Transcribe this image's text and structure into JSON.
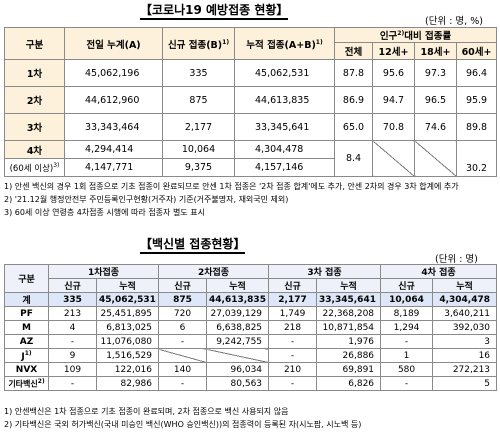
{
  "section1": {
    "title": "【코로나19 예방접종 현황】",
    "unit": "(단위 : 명, %)",
    "headers": {
      "gubun": "구분",
      "prev": "전일 누계(A)",
      "new": "신규 접종(B)",
      "new_sup": "1)",
      "cum": "누적 접종(A+B)",
      "cum_sup": "1)",
      "ratio": "인구",
      "ratio_sup": "2)",
      "ratio_tail": "대비 접종률",
      "sub": [
        "전체",
        "12세+",
        "18세+",
        "60세+"
      ]
    },
    "rows": [
      {
        "label": "1차",
        "prev": "45,062,196",
        "new": "335",
        "cum": "45,062,531",
        "r": [
          "87.8",
          "95.6",
          "97.3",
          "96.4"
        ]
      },
      {
        "label": "2차",
        "prev": "44,612,960",
        "new": "875",
        "cum": "44,613,835",
        "r": [
          "86.9",
          "94.7",
          "96.5",
          "95.9"
        ]
      },
      {
        "label": "3차",
        "prev": "33,343,464",
        "new": "2,177",
        "cum": "33,345,641",
        "r": [
          "65.0",
          "70.8",
          "74.6",
          "89.8"
        ]
      }
    ],
    "row4": {
      "label": "4차",
      "sub_label": "(60세 이상)",
      "sub_sup": "3)",
      "prev": "4,294,414",
      "prev2": "4,147,771",
      "new": "10,064",
      "new2": "9,375",
      "cum": "4,304,478",
      "cum2": "4,157,146",
      "total": "8.4",
      "r60": "30.2"
    },
    "notes": [
      "1) 안센 백신의 경우 1회 접종으로 기초 접종이 완료되므로 안센 1차 접종은 '2차 접종 합계'에도 추가, 안센 2차의 경우 3차 합계에 추가",
      "2) '21.12월 행정안전부 주민등록인구현황(거주자) 기준(거주불명자, 재외국민 제외)",
      "3) 60세 이상 연령층 4차접종 시행에 따라 접종자 별도 표시"
    ]
  },
  "section2": {
    "title": "【백신별 접종현황】",
    "unit": "(단위 : 명)",
    "headers": {
      "gubun": "구분",
      "groups": [
        "1차접종",
        "2차접종",
        "3차 접종",
        "4차 접종"
      ],
      "sub_new": "신규",
      "sub_cum": "누적"
    },
    "rows": [
      {
        "label": "계",
        "sup": "",
        "v": [
          "335",
          "45,062,531",
          "875",
          "44,613,835",
          "2,177",
          "33,345,641",
          "10,064",
          "4,304,478"
        ]
      },
      {
        "label": "PF",
        "sup": "",
        "v": [
          "213",
          "25,451,895",
          "720",
          "27,039,129",
          "1,749",
          "22,368,208",
          "8,189",
          "3,640,211"
        ]
      },
      {
        "label": "M",
        "sup": "",
        "v": [
          "4",
          "6,813,025",
          "6",
          "6,638,825",
          "218",
          "10,871,854",
          "1,294",
          "392,030"
        ]
      },
      {
        "label": "AZ",
        "sup": "",
        "v": [
          "-",
          "11,076,080",
          "-",
          "9,242,755",
          "-",
          "1,976",
          "-",
          "3"
        ]
      },
      {
        "label": "J",
        "sup": "1)",
        "v": [
          "9",
          "1,516,529",
          "",
          "",
          "-",
          "26,886",
          "1",
          "16"
        ]
      },
      {
        "label": "NVX",
        "sup": "",
        "v": [
          "109",
          "122,016",
          "140",
          "96,034",
          "210",
          "69,891",
          "580",
          "272,213"
        ]
      },
      {
        "label": "기타백신",
        "sup": "2)",
        "v": [
          "-",
          "82,986",
          "-",
          "80,563",
          "-",
          "6,826",
          "-",
          "5"
        ]
      }
    ],
    "notes": [
      "1) 안센백신은 1차 접종으로 기초 접종이 완료되며, 2차 접종으로 백신 사용되지 않음",
      "2) 기타백신은 국외 허가백신(국내 미승인 백신(WHO 승인백신))의 접종력이 등록된 자(시노팜, 시노백 등)"
    ]
  }
}
